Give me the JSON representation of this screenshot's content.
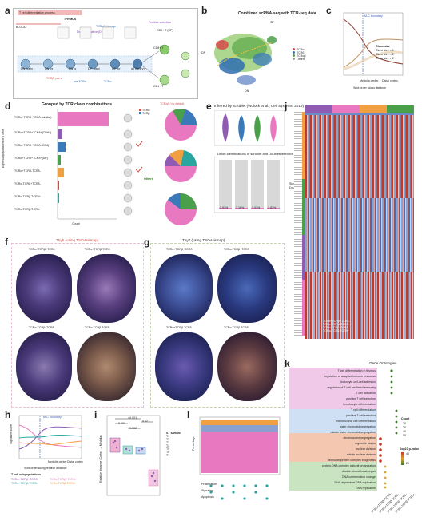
{
  "panels": {
    "a": "a",
    "b": "b",
    "c": "c",
    "d": "d",
    "e": "e",
    "f": "f",
    "g": "g",
    "h": "h",
    "i": "i",
    "j": "j",
    "k": "k",
    "l": "l"
  },
  "a": {
    "header_left": "T cell differentiation process",
    "thymus_label": "THYMUS",
    "blood_label": "BLOOD",
    "lineage_label": "TCRαβ Lineage",
    "positive_selection": "Positive selection",
    "double_negative": "Double negative (DN)",
    "stages": [
      "DN_early",
      "DN_re",
      "DN_q",
      "DP_blast",
      "DP_re",
      "αβT(entry)",
      "CD8+ T",
      "CD4+ T"
    ],
    "notes": [
      "TCRβ, pre-α",
      "pre-TCRα",
      "TCRα",
      "TCRγδ"
    ],
    "right_stages": [
      "CD8+ T (SP)",
      "CD4+ T (SP)",
      "CD8αα+",
      "TCR-γδ"
    ]
  },
  "b": {
    "title": "Combined scRNA-seq with TCR-seq data",
    "dp_label": "DP",
    "dn_label": "DN",
    "sp_label": "SP",
    "legend": [
      "TCRα",
      "TCRβ",
      "TCRαβ",
      "Others"
    ]
  },
  "c": {
    "annotation": "M-C boundary",
    "xlabel": "Spot order along distance",
    "ylabel": "Signature score of T cell clusters with different clone sizes",
    "legend_title": "Clone size",
    "legend": [
      "Clone size = 1",
      "Clone size = 2",
      "Clone size > 2"
    ],
    "axis_left": "Medulla center",
    "axis_right": "Distal cortex"
  },
  "d": {
    "title": "Grouped by TCR chain combinations",
    "rows": [
      "TCRα+TCRβ+TCRδ-(similar)",
      "TCRα+TCRβ+TCRδ+(CD8+)",
      "TCRα+TCRβ+TCRδ-(CD4)",
      "TCRα+TCRβ+TCRδ+(DP)",
      "TCRα+TCRβ-TCRδ-",
      "TCRα-TCRβ+TCRδ-",
      "TCRα-TCRβ-TCRδ+",
      "TCRα-TCRβ-TCRδ-"
    ],
    "ylabel": "Eight subpopulations of T cells",
    "xlabel": "Count",
    "pie_titles": [
      "TCRαβ / by default",
      "Percentage",
      "Others"
    ],
    "others_label": "Others",
    "legend": [
      "TCRα",
      "TCRβ",
      "TCRγ",
      "TCRδ"
    ]
  },
  "e": {
    "title": "Inferred by scrublet (Wolock et al., Cell Systems, 2019)",
    "subtitle": "Union identifications of scrublet and DoubletDetection",
    "ylabel_top": "Doublet score",
    "ylabel_bottom": "Frequency (%)",
    "pct_labels": [
      "2.91%",
      "3.16%",
      "3.01%",
      "2.81%"
    ],
    "legend": [
      "Singlet",
      "Doublet"
    ]
  },
  "f": {
    "title": "Thy5 (using TSO-Hismap)",
    "labels": [
      "TCRα+TCRβ+TCRδ",
      "TCRα+TCRβ-TCRδ",
      "TCRα-TCRβ+TCRδ",
      "TCRα-TCRβ-TCRδ-"
    ]
  },
  "g": {
    "title": "Thy7 (using TSO-Hismap)",
    "labels": [
      "TCRα+TCRβ+TCRδ",
      "TCRα-TCRβ+TCRδ",
      "TCRα+TCRβ-TCRδ",
      "TCRα-TCRβ-TCRδ-"
    ]
  },
  "h": {
    "annotation": "M-C boundary",
    "ylabel": "Signature score",
    "xlabel": "Spot order along relative distance",
    "axis_left": "Medulla center",
    "axis_right": "Distal cortex",
    "legend_title": "T cell subpopulations",
    "legend": [
      "TCRα+TCRβ+TCRδ-",
      "TCRα+TCRβ-TCRδ-",
      "TCRα-TCRβ+TCRδ-",
      "TCRα-TCRβ-TCRδ+"
    ]
  },
  "i": {
    "ylabel": "Relative distance (Cortex → Medulla)",
    "pvals": [
      "0.003",
      "0.002",
      "<0.001",
      "0.02"
    ],
    "legend_title": "ST sample",
    "legend": [
      "T1",
      "T2",
      "T3",
      "T4",
      "T5",
      "T6",
      "T7"
    ],
    "groups": [
      "TCRα+TCRβ+TCRδ-",
      "TCRα+TCRβ-TCRδ-",
      "TCRα-TCRβ+TCRδ-",
      "TCRα-TCRβ-TCRδ+"
    ]
  },
  "j": {
    "legend_groups": [
      "TCRα+TCRβ+TCRδ-",
      "TCRα+TCRβ-TCRδ-",
      "TCRα-TCRβ+TCRδ-",
      "TCRα-TCRβ-TCRδ+"
    ]
  },
  "k": {
    "title": "Gene Ontologies",
    "terms": [
      "T cell differentiation in thymus",
      "regulation of adaptive immune response",
      "leukocyte cell-cell adhesion",
      "regulation of T cell mediated immunity",
      "T cell activation",
      "positive T cell selection",
      "lymphocyte differentiation",
      "T cell differentiation",
      "positive T cell selection",
      "mononuclear cell differentiation",
      "sister chromatid segregation",
      "mitotic sister chromatid segregation",
      "chromosome segregation",
      "organelle fission",
      "nuclear division",
      "mitotic nuclear division",
      "ribonucleoprotein complex biogenesis",
      "protein-DNA complex subunit organization",
      "double-strand break repair",
      "DNA conformation change",
      "DNA-dependent DNA replication",
      "DNA replication"
    ],
    "count_title": "Count",
    "count_levels": [
      "20",
      "30",
      "40",
      "50"
    ],
    "padj_title": "-log10 p-value",
    "padj_levels": [
      "40",
      "20"
    ],
    "groups": [
      "TCRα+TCRβ+TCRδ-",
      "TCRα+TCRβ-TCRδ-",
      "TCRα-TCRβ+TCRδ-",
      "TCRα-TCRβ-TCRδ+"
    ]
  },
  "l": {
    "ylabel": "Percentage",
    "legend": [
      "Proliferation",
      "Signaling",
      "Apoptosis",
      "Others"
    ]
  },
  "colors": {
    "alpha": "#d64a4a",
    "beta": "#3a7ab8",
    "ab": "#4aa04a",
    "others": "#9a9a9a",
    "pink": "#e879c0",
    "teal": "#2aa6a0",
    "orange": "#f0a040",
    "purple": "#8f5bb3",
    "heat_high": "#c0392b",
    "heat_low": "#2c4a9a"
  }
}
